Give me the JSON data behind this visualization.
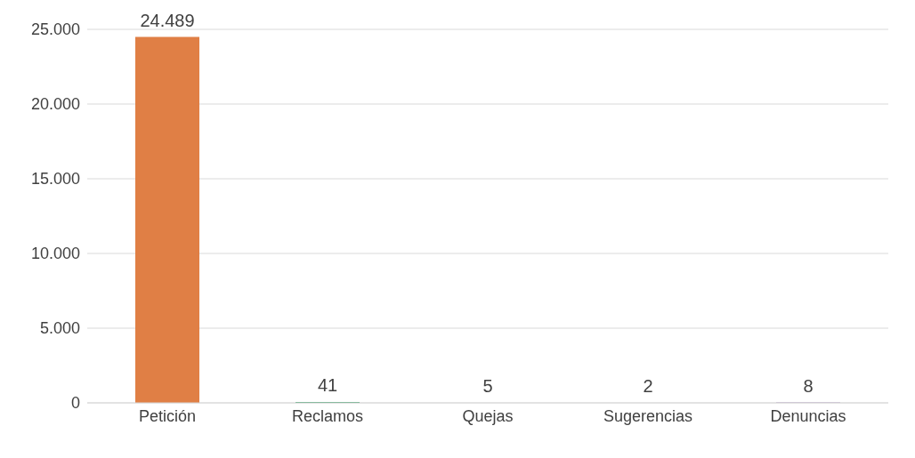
{
  "chart_data": {
    "type": "bar",
    "categories": [
      "Petición",
      "Reclamos",
      "Quejas",
      "Sugerencias",
      "Denuncias"
    ],
    "values": [
      24489,
      41,
      5,
      2,
      8
    ],
    "colors": [
      "#e07f45",
      "#00843d",
      "#c8c800",
      "#008bc0",
      "#5b2a86"
    ],
    "value_labels": [
      "24.489",
      "41",
      "5",
      "2",
      "8"
    ],
    "ylim": [
      0,
      25000
    ],
    "yticks": [
      {
        "value": 0,
        "label": "0"
      },
      {
        "value": 5000,
        "label": "5.000"
      },
      {
        "value": 10000,
        "label": "10.000"
      },
      {
        "value": 15000,
        "label": "15.000"
      },
      {
        "value": 20000,
        "label": "20.000"
      },
      {
        "value": 25000,
        "label": "25.000"
      }
    ],
    "grid": "y"
  }
}
